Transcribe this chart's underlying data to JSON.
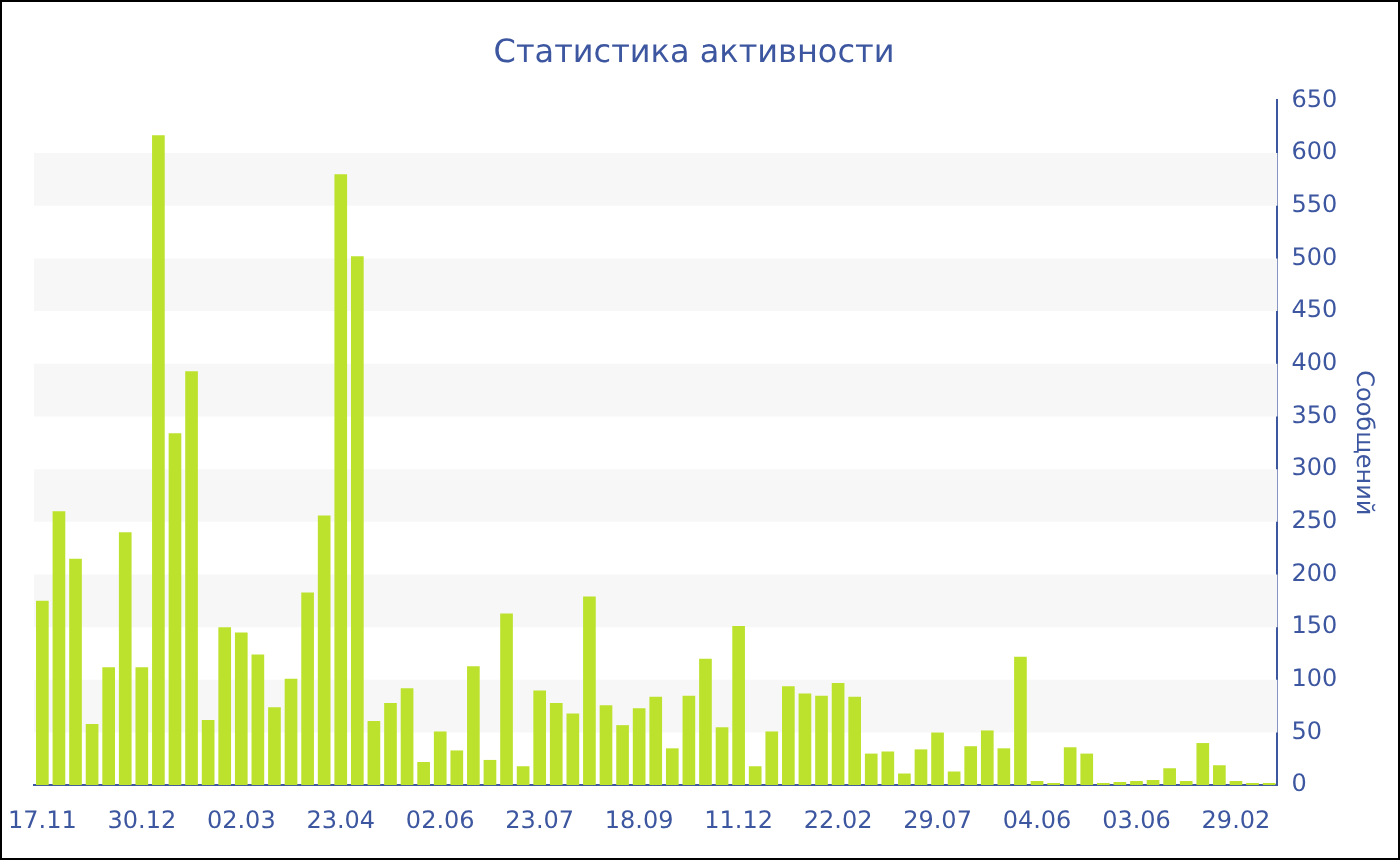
{
  "chart_data": {
    "type": "bar",
    "title": "Статистика активности",
    "ylabel": "Сообщений",
    "categories": [
      "17.11",
      null,
      null,
      null,
      null,
      null,
      "30.12",
      null,
      null,
      null,
      null,
      null,
      "02.03",
      null,
      null,
      null,
      null,
      null,
      "23.04",
      null,
      null,
      null,
      null,
      null,
      "02.06",
      null,
      null,
      null,
      null,
      null,
      "23.07",
      null,
      null,
      null,
      null,
      null,
      "18.09",
      null,
      null,
      null,
      null,
      null,
      "11.12",
      null,
      null,
      null,
      null,
      null,
      "22.02",
      null,
      null,
      null,
      null,
      null,
      "29.07",
      null,
      null,
      null,
      null,
      null,
      "04.06",
      null,
      null,
      null,
      null,
      null,
      "03.06",
      null,
      null,
      null,
      null,
      null,
      "29.02",
      null,
      null
    ],
    "values": [
      175,
      260,
      215,
      58,
      112,
      240,
      112,
      617,
      334,
      393,
      62,
      150,
      145,
      124,
      74,
      101,
      183,
      256,
      580,
      502,
      61,
      78,
      92,
      22,
      51,
      33,
      113,
      24,
      163,
      18,
      90,
      78,
      68,
      179,
      76,
      57,
      73,
      84,
      35,
      85,
      120,
      55,
      151,
      18,
      51,
      94,
      87,
      85,
      97,
      84,
      30,
      32,
      11,
      34,
      50,
      13,
      37,
      52,
      35,
      122,
      4,
      2,
      36,
      30,
      2,
      3,
      4,
      5,
      16,
      4,
      40,
      19,
      4,
      2,
      2
    ],
    "color": "#bde22e",
    "ylim": [
      0,
      650
    ],
    "yticks": [
      0,
      50,
      100,
      150,
      200,
      250,
      300,
      350,
      400,
      450,
      500,
      550,
      600,
      650
    ],
    "bands": [
      {
        "axis": "y",
        "from": 50,
        "to": 100,
        "color": "#f7f7f7"
      },
      {
        "axis": "y",
        "from": 150,
        "to": 200,
        "color": "#f7f7f7"
      },
      {
        "axis": "y",
        "from": 250,
        "to": 300,
        "color": "#f7f7f7"
      },
      {
        "axis": "y",
        "from": 350,
        "to": 400,
        "color": "#f7f7f7"
      },
      {
        "axis": "y",
        "from": 450,
        "to": 500,
        "color": "#f7f7f7"
      },
      {
        "axis": "y",
        "from": 550,
        "to": 600,
        "color": "#f7f7f7"
      }
    ]
  }
}
